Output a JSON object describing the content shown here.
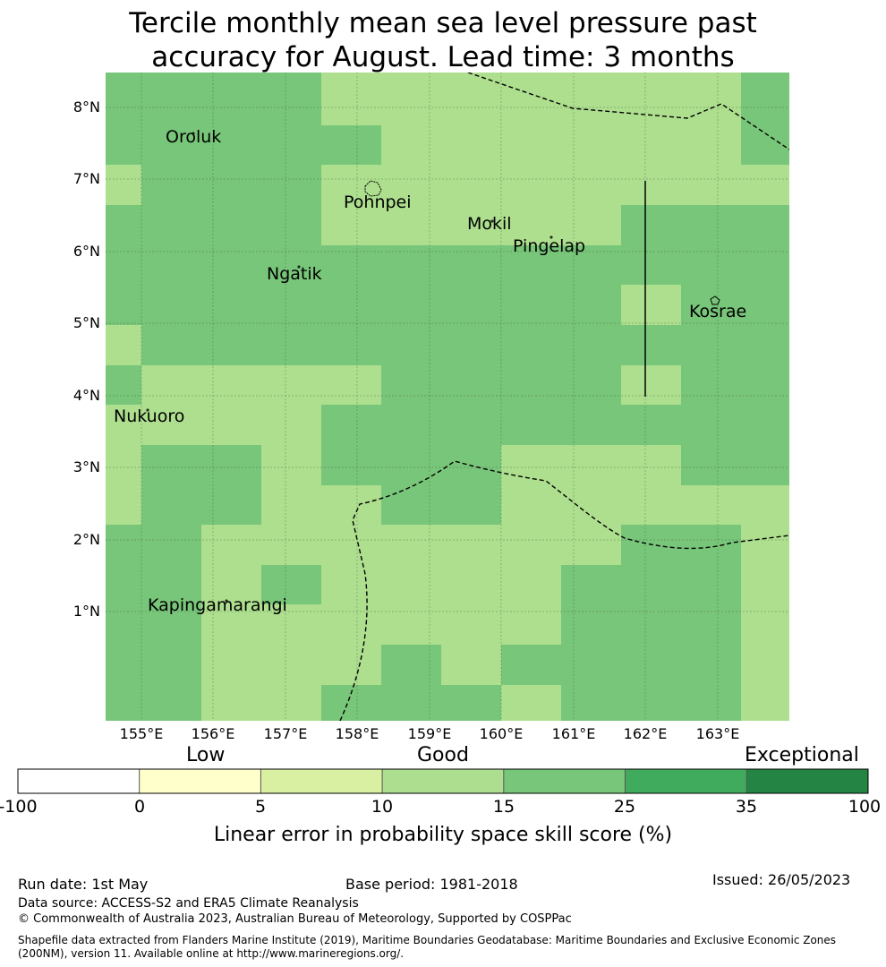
{
  "title_line1": "Tercile monthly mean sea level pressure past",
  "title_line2": "accuracy for August. Lead time: 3 months",
  "map": {
    "lon_range": [
      154.5,
      164.0
    ],
    "lat_range": [
      -0.5,
      8.5
    ],
    "lat_labels": [
      "8°N",
      "7°N",
      "6°N",
      "5°N",
      "4°N",
      "3°N",
      "2°N",
      "1°N"
    ],
    "lon_labels": [
      "155°E",
      "156°E",
      "157°E",
      "158°E",
      "159°E",
      "160°E",
      "161°E",
      "162°E",
      "163°E"
    ],
    "places": [
      "Oroluk",
      "Pohnpei",
      "Mokil",
      "Pingelap",
      "Ngatik",
      "Kosrae",
      "Nukuoro",
      "Kapingamarangi"
    ],
    "skill_colors": {
      "good": "#addf8e",
      "very_good": "#78c679"
    }
  },
  "colorbar": {
    "category_low": "Low",
    "category_good": "Good",
    "category_exceptional": "Exceptional",
    "ticks": [
      "-100",
      "0",
      "5",
      "10",
      "15",
      "25",
      "35",
      "100"
    ],
    "colors": [
      "#ffffff",
      "#ffffcc",
      "#d9f0a3",
      "#addd8e",
      "#78c679",
      "#41ab5d",
      "#238443"
    ],
    "label": "Linear error in probability space skill score (%)"
  },
  "footer": {
    "run_date": "Run date: 1st May",
    "base_period": "Base period: 1981-2018",
    "issued": "Issued: 26/05/2023",
    "data_source": "Data source: ACCESS-S2 and ERA5 Climate Reanalysis",
    "copyright": "© Commonwealth of Australia 2023, Australian Bureau of Meteorology, Supported by COSPPac",
    "shapefile_line1": "Shapefile data extracted from Flanders Marine Institute (2019), Maritime Boundaries Geodatabase: Maritime Boundaries and Exclusive Economic Zones",
    "shapefile_line2": "(200NM), version 11. Available online at http://www.marineregions.org/."
  }
}
